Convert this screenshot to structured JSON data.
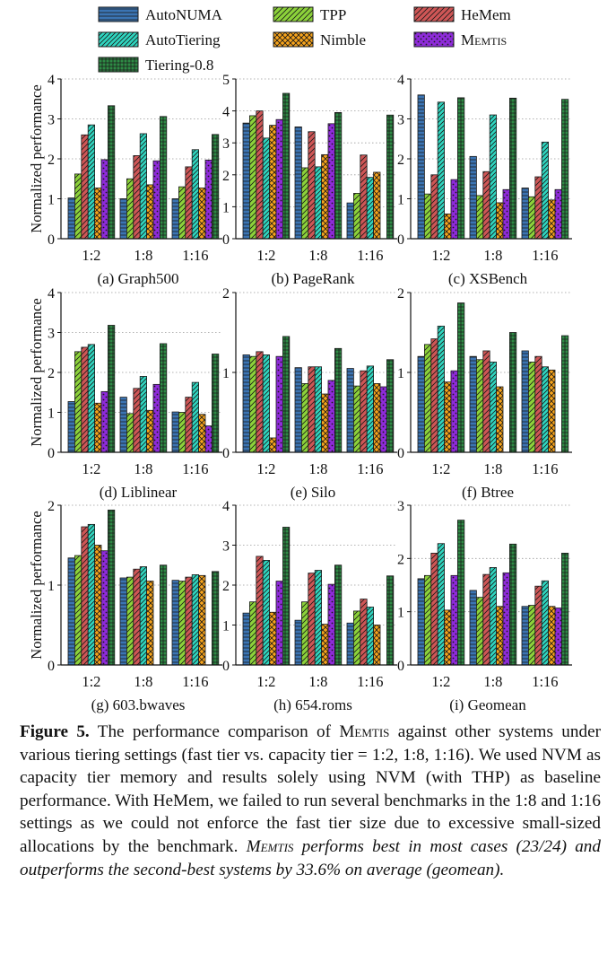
{
  "legend": [
    {
      "name": "AutoNUMA",
      "color": "#3b74b3",
      "pattern": "hline"
    },
    {
      "name": "TPP",
      "color": "#8cd23a",
      "pattern": "diag"
    },
    {
      "name": "HeMem",
      "color": "#cf5656",
      "pattern": "diag2"
    },
    {
      "name": "AutoTiering",
      "color": "#2fd6c0",
      "pattern": "diag3"
    },
    {
      "name": "Nimble",
      "color": "#f6a31b",
      "pattern": "cross"
    },
    {
      "name": "Memtis",
      "color": "#8e2bd9",
      "pattern": "stars"
    },
    {
      "name": "Tiering-0.8",
      "color": "#2e8b45",
      "pattern": "grid"
    }
  ],
  "y_axis_label": "Normalized performance",
  "chart_data": [
    {
      "type": "bar",
      "title": "(a) Graph500",
      "categories": [
        "1:2",
        "1:8",
        "1:16"
      ],
      "ylim": [
        0,
        4
      ],
      "yticks": [
        0,
        1,
        2,
        3,
        4
      ],
      "values": [
        [
          1.02,
          1.62,
          2.6,
          2.85,
          1.27,
          1.98,
          3.33
        ],
        [
          1.0,
          1.5,
          2.08,
          2.63,
          1.35,
          1.95,
          3.06
        ],
        [
          1.0,
          1.3,
          1.8,
          2.23,
          1.27,
          1.97,
          2.61
        ]
      ]
    },
    {
      "type": "bar",
      "title": "(b) PageRank",
      "categories": [
        "1:2",
        "1:8",
        "1:16"
      ],
      "ylim": [
        0,
        5
      ],
      "yticks": [
        0,
        1,
        2,
        3,
        4,
        5
      ],
      "values": [
        [
          3.62,
          3.85,
          4.0,
          3.15,
          3.55,
          3.73,
          4.55
        ],
        [
          3.5,
          2.22,
          3.35,
          2.25,
          2.63,
          3.6,
          3.95
        ],
        [
          1.12,
          1.42,
          2.62,
          1.92,
          2.08,
          null,
          3.87
        ]
      ]
    },
    {
      "type": "bar",
      "title": "(c) XSBench",
      "categories": [
        "1:2",
        "1:8",
        "1:16"
      ],
      "ylim": [
        0,
        4
      ],
      "yticks": [
        0,
        1,
        2,
        3,
        4
      ],
      "values": [
        [
          3.6,
          1.12,
          1.6,
          3.42,
          0.62,
          1.48,
          3.53
        ],
        [
          2.06,
          1.08,
          1.68,
          3.1,
          0.9,
          1.23,
          3.52
        ],
        [
          1.27,
          1.05,
          1.55,
          2.42,
          0.97,
          1.23,
          3.49
        ]
      ]
    },
    {
      "type": "bar",
      "title": "(d) Liblinear",
      "categories": [
        "1:2",
        "1:8",
        "1:16"
      ],
      "ylim": [
        0,
        4
      ],
      "yticks": [
        0,
        1,
        2,
        3,
        4
      ],
      "values": [
        [
          1.27,
          2.52,
          2.63,
          2.7,
          1.23,
          1.52,
          3.18
        ],
        [
          1.38,
          0.97,
          1.6,
          1.9,
          1.05,
          1.7,
          2.72
        ],
        [
          1.01,
          1.0,
          1.38,
          1.75,
          0.95,
          0.66,
          2.46
        ]
      ]
    },
    {
      "type": "bar",
      "title": "(e) Silo",
      "categories": [
        "1:2",
        "1:8",
        "1:16"
      ],
      "ylim": [
        0,
        2
      ],
      "yticks": [
        0,
        1,
        2
      ],
      "values": [
        [
          1.22,
          1.2,
          1.26,
          1.22,
          0.18,
          1.2,
          1.45
        ],
        [
          1.06,
          0.86,
          1.07,
          1.07,
          0.73,
          0.9,
          1.3
        ],
        [
          1.05,
          0.83,
          1.02,
          1.08,
          0.86,
          0.82,
          1.16
        ]
      ]
    },
    {
      "type": "bar",
      "title": "(f) Btree",
      "categories": [
        "1:2",
        "1:8",
        "1:16"
      ],
      "ylim": [
        0,
        2
      ],
      "yticks": [
        0,
        1,
        2
      ],
      "values": [
        [
          1.2,
          1.35,
          1.42,
          1.58,
          0.88,
          1.02,
          1.87
        ],
        [
          1.2,
          1.16,
          1.27,
          1.13,
          0.82,
          null,
          1.5
        ],
        [
          1.27,
          1.13,
          1.2,
          1.07,
          1.03,
          null,
          1.46
        ]
      ]
    },
    {
      "type": "bar",
      "title": "(g) 603.bwaves",
      "categories": [
        "1:2",
        "1:8",
        "1:16"
      ],
      "ylim": [
        0,
        2
      ],
      "yticks": [
        0,
        1,
        2
      ],
      "values": [
        [
          1.34,
          1.37,
          1.73,
          1.76,
          1.5,
          1.43,
          1.94
        ],
        [
          1.09,
          1.1,
          1.2,
          1.23,
          1.05,
          null,
          1.25
        ],
        [
          1.06,
          1.05,
          1.1,
          1.13,
          1.12,
          null,
          1.17
        ]
      ]
    },
    {
      "type": "bar",
      "title": "(h) 654.roms",
      "categories": [
        "1:2",
        "1:8",
        "1:16"
      ],
      "ylim": [
        0,
        4
      ],
      "yticks": [
        0,
        1,
        2,
        3,
        4
      ],
      "values": [
        [
          1.3,
          1.58,
          2.72,
          2.62,
          1.32,
          2.1,
          3.45
        ],
        [
          1.12,
          1.58,
          2.3,
          2.37,
          1.02,
          2.02,
          2.5
        ],
        [
          1.05,
          1.35,
          1.65,
          1.45,
          1.0,
          null,
          2.23
        ]
      ]
    },
    {
      "type": "bar",
      "title": "(i) Geomean",
      "categories": [
        "1:2",
        "1:8",
        "1:16"
      ],
      "ylim": [
        0,
        3
      ],
      "yticks": [
        0,
        1,
        2,
        3
      ],
      "values": [
        [
          1.62,
          1.68,
          2.1,
          2.28,
          1.03,
          1.68,
          2.72
        ],
        [
          1.4,
          1.27,
          1.7,
          1.83,
          1.1,
          1.73,
          2.27
        ],
        [
          1.1,
          1.12,
          1.48,
          1.58,
          1.1,
          1.07,
          2.1
        ]
      ]
    }
  ],
  "caption": {
    "label": "Figure 5.",
    "text1": " The performance comparison of ",
    "memtis1": "Memtis",
    "text2": " against other systems under various tiering settings (fast tier vs. capacity tier = 1:2, 1:8, 1:16). We used NVM as capacity tier memory and results solely using NVM (with THP) as baseline performance. With HeMem, we failed to run several benchmarks in the 1:8 and 1:16 settings as we could not enforce the fast tier size due to excessive small-sized allocations by the benchmark. ",
    "memtis2": "Memtis",
    "emph": " performs best in most cases (23/24) and outperforms the second-best systems by 33.6% on average (geomean)."
  }
}
